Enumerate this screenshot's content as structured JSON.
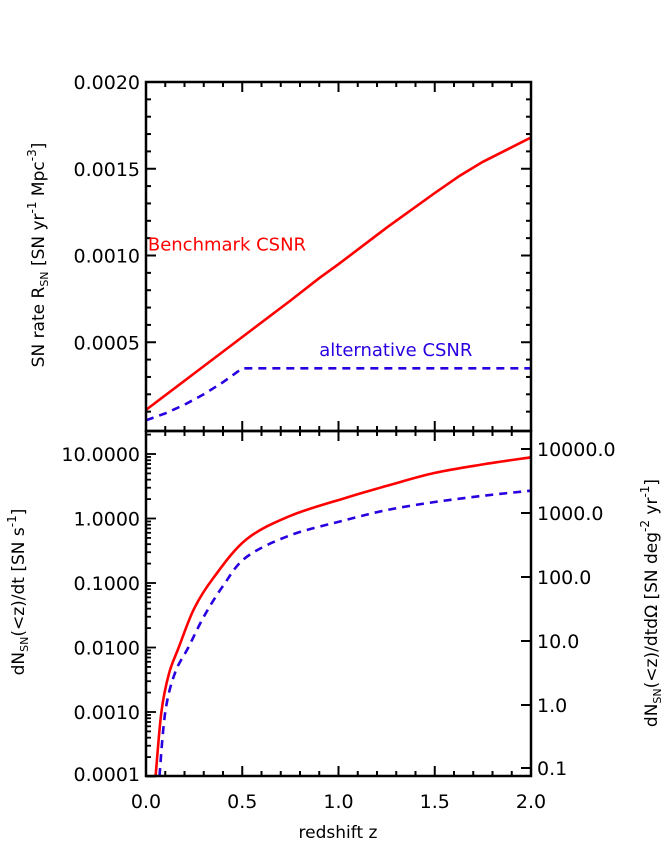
{
  "colors": {
    "benchmark": "#ff0000",
    "alternative": "#2a00e0",
    "axis": "#000000",
    "background": "#ffffff"
  },
  "chart_data": [
    {
      "type": "line",
      "panel": "top",
      "title": "",
      "xlabel": "",
      "ylabel": "SN rate R_SN [SN yr^-1 Mpc^-3]",
      "ylabel_parts": {
        "main": "SN rate R",
        "sub": "SN",
        "bracket": "[SN yr",
        "exp1": "-1",
        "mid": " Mpc",
        "exp2": "-3",
        "close": "]"
      },
      "xlim": [
        0.0,
        2.0
      ],
      "ylim": [
        0.0,
        0.002
      ],
      "yscale": "linear",
      "yticks": [
        0.0005,
        0.001,
        0.0015,
        0.002
      ],
      "ytick_labels": [
        "0.0005",
        "0.0010",
        "0.0015",
        "0.0020"
      ],
      "grid": false,
      "annotations": [
        {
          "text": "Benchmark CSNR",
          "series": "Benchmark CSNR",
          "x": 0.02,
          "y": 0.00107
        },
        {
          "text": "alternative CSNR",
          "series": "alternative CSNR",
          "x": 0.9,
          "y": 0.00046
        }
      ],
      "series": [
        {
          "name": "Benchmark CSNR",
          "style": "solid",
          "x": [
            0.0,
            0.25,
            0.5,
            0.75,
            0.9,
            1.0,
            1.25,
            1.5,
            1.63,
            1.75,
            2.0
          ],
          "y": [
            0.00011,
            0.00032,
            0.00053,
            0.00074,
            0.00087,
            0.00095,
            0.00116,
            0.00136,
            0.00146,
            0.00154,
            0.00168
          ]
        },
        {
          "name": "alternative CSNR",
          "style": "dashed",
          "x": [
            0.0,
            0.1,
            0.2,
            0.3,
            0.4,
            0.5,
            0.75,
            1.0,
            1.5,
            2.0
          ],
          "y": [
            5e-05,
            9e-05,
            0.00014,
            0.0002,
            0.00027,
            0.00035,
            0.00035,
            0.00035,
            0.00035,
            0.00035
          ]
        }
      ]
    },
    {
      "type": "line",
      "panel": "bottom",
      "title": "",
      "xlabel": "redshift z",
      "ylabel": "dN_SN(<z)/dt [SN s^-1]",
      "ylabel_parts": {
        "main": "dN",
        "sub": "SN",
        "rest": "(<z)/dt  [SN s",
        "exp": "-1",
        "close": "]"
      },
      "ylabel_right": "dN_SN(<z)/dtdΩ [SN deg^-2 yr^-1]",
      "ylabel_right_parts": {
        "main": "dN",
        "sub": "SN",
        "rest": "(<z)/dtdΩ  [SN deg",
        "exp1": "-2",
        "mid": " yr",
        "exp2": "-1",
        "close": "]"
      },
      "xlim": [
        0.0,
        2.0
      ],
      "xticks": [
        0.0,
        0.5,
        1.0,
        1.5,
        2.0
      ],
      "xtick_labels": [
        "0.0",
        "0.5",
        "1.0",
        "1.5",
        "2.0"
      ],
      "ylim": [
        0.0001,
        23
      ],
      "yscale": "log",
      "yticks": [
        0.0001,
        0.001,
        0.01,
        0.1,
        1,
        10
      ],
      "ytick_labels": [
        "0.0001",
        "0.0010",
        "0.0100",
        "0.1000",
        "1.0000",
        "10.0000"
      ],
      "ylim_right": [
        0.1,
        11000
      ],
      "yticks_right": [
        0.1,
        1,
        10,
        100,
        1000,
        10000
      ],
      "ytick_labels_right": [
        "0.1",
        "1.0",
        "10.0",
        "100.0",
        "1000.0",
        "10000.0"
      ],
      "grid": false,
      "series": [
        {
          "name": "Benchmark CSNR",
          "style": "solid",
          "x": [
            0.05,
            0.08,
            0.12,
            0.17,
            0.25,
            0.35,
            0.52,
            0.75,
            1.04,
            1.25,
            1.5,
            1.75,
            2.0
          ],
          "y": [
            0.0001,
            0.001,
            0.004,
            0.01,
            0.04,
            0.12,
            0.47,
            1.1,
            2.1,
            3.2,
            5.1,
            6.9,
            8.9
          ]
        },
        {
          "name": "alternative CSNR",
          "style": "dashed",
          "x": [
            0.07,
            0.1,
            0.15,
            0.22,
            0.3,
            0.4,
            0.52,
            0.75,
            1.04,
            1.25,
            1.5,
            1.75,
            2.0
          ],
          "y": [
            0.0001,
            0.001,
            0.004,
            0.01,
            0.03,
            0.09,
            0.25,
            0.55,
            0.95,
            1.35,
            1.8,
            2.25,
            2.7
          ]
        }
      ]
    }
  ]
}
